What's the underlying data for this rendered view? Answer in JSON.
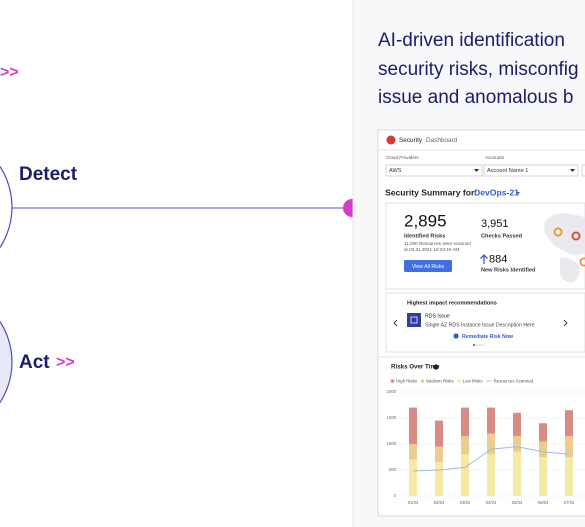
{
  "top_arrow": ">>",
  "steps": [
    {
      "label": "Detect"
    },
    {
      "label": "Act",
      "arrow": ">>"
    }
  ],
  "panel": {
    "description_lines": [
      "AI-driven identification",
      "security risks, misconfig",
      "issue and anomalous b"
    ]
  },
  "dashboard": {
    "app": "Security",
    "page": "Dashboard",
    "filters": [
      {
        "label": "Cloud Providers",
        "value": "AWS"
      },
      {
        "label": "Accounts",
        "value": "Account Name 1"
      }
    ],
    "summary_label": "Security Summary for:",
    "summary_target": "DevOps-21",
    "identified_risks": {
      "value": "2,895",
      "label": "Identified Risks",
      "note_lines": [
        "11,000 Resources were scanned",
        "at 03.31.2021 10:23:40 AM"
      ],
      "button": "View All Risks"
    },
    "checks_passed": {
      "value": "3,951",
      "label": "Checks Passed"
    },
    "new_risks": {
      "value": "884",
      "label": "New Risks Identified"
    },
    "recommendations": {
      "title": "Highest impact recommendations",
      "item_title": "RDS Issue",
      "item_description": "Single AZ RDS Instance Issue Description Here",
      "action": "Remediate Risk Now"
    },
    "chart": {
      "type": "bar",
      "title": "Risks Over Time",
      "categories": [
        "01/04",
        "02/04",
        "03/04",
        "04/04",
        "05/04",
        "06/04",
        "07/04"
      ],
      "series": [
        {
          "name": "High Risks",
          "color": "#d98c86",
          "values": [
            700,
            500,
            550,
            500,
            450,
            350,
            500
          ]
        },
        {
          "name": "Medium Risks",
          "color": "#ebcd8f",
          "values": [
            300,
            300,
            350,
            400,
            300,
            300,
            400
          ]
        },
        {
          "name": "Low Risks",
          "color": "#f5eaa2",
          "values": [
            700,
            650,
            800,
            800,
            850,
            750,
            750
          ]
        }
      ],
      "line": {
        "name": "Resources Scanned",
        "color": "#9fbbe2",
        "values": [
          480,
          500,
          550,
          900,
          950,
          850,
          800
        ]
      },
      "ylim": [
        0,
        2000
      ],
      "yticks": [
        0,
        500,
        1000,
        1500,
        2000
      ],
      "grid": true
    }
  }
}
